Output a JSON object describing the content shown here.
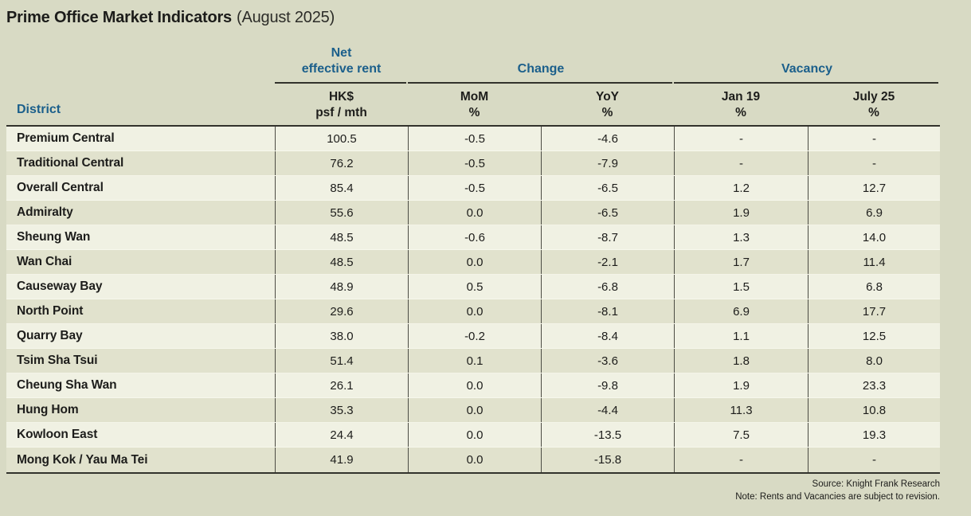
{
  "title": {
    "main": "Prime Office Market Indicators",
    "suffix": "(August 2025)"
  },
  "header": {
    "district_label": "District",
    "groups": [
      {
        "label": "Net\neffective rent"
      },
      {
        "label": "Change"
      },
      {
        "label": "Vacancy"
      }
    ],
    "columns": [
      {
        "label": "HK$\npsf / mth"
      },
      {
        "label": "MoM\n%"
      },
      {
        "label": "YoY\n%"
      },
      {
        "label": "Jan 19\n%"
      },
      {
        "label": "July 25\n%"
      }
    ]
  },
  "rows": [
    {
      "district": "Premium Central",
      "rent": "100.5",
      "mom": "-0.5",
      "yoy": "-4.6",
      "jan19": "-",
      "july25": "-"
    },
    {
      "district": "Traditional Central",
      "rent": "76.2",
      "mom": "-0.5",
      "yoy": "-7.9",
      "jan19": "-",
      "july25": "-"
    },
    {
      "district": "Overall Central",
      "rent": "85.4",
      "mom": "-0.5",
      "yoy": "-6.5",
      "jan19": "1.2",
      "july25": "12.7"
    },
    {
      "district": "Admiralty",
      "rent": "55.6",
      "mom": "0.0",
      "yoy": "-6.5",
      "jan19": "1.9",
      "july25": "6.9"
    },
    {
      "district": "Sheung Wan",
      "rent": "48.5",
      "mom": "-0.6",
      "yoy": "-8.7",
      "jan19": "1.3",
      "july25": "14.0"
    },
    {
      "district": "Wan Chai",
      "rent": "48.5",
      "mom": "0.0",
      "yoy": "-2.1",
      "jan19": "1.7",
      "july25": "11.4"
    },
    {
      "district": "Causeway Bay",
      "rent": "48.9",
      "mom": "0.5",
      "yoy": "-6.8",
      "jan19": "1.5",
      "july25": "6.8"
    },
    {
      "district": "North Point",
      "rent": "29.6",
      "mom": "0.0",
      "yoy": "-8.1",
      "jan19": "6.9",
      "july25": "17.7"
    },
    {
      "district": "Quarry Bay",
      "rent": "38.0",
      "mom": "-0.2",
      "yoy": "-8.4",
      "jan19": "1.1",
      "july25": "12.5"
    },
    {
      "district": "Tsim Sha Tsui",
      "rent": "51.4",
      "mom": "0.1",
      "yoy": "-3.6",
      "jan19": "1.8",
      "july25": "8.0"
    },
    {
      "district": "Cheung Sha Wan",
      "rent": "26.1",
      "mom": "0.0",
      "yoy": "-9.8",
      "jan19": "1.9",
      "july25": "23.3"
    },
    {
      "district": "Hung Hom",
      "rent": "35.3",
      "mom": "0.0",
      "yoy": "-4.4",
      "jan19": "11.3",
      "july25": "10.8"
    },
    {
      "district": "Kowloon East",
      "rent": "24.4",
      "mom": "0.0",
      "yoy": "-13.5",
      "jan19": "7.5",
      "july25": "19.3"
    },
    {
      "district": "Mong Kok / Yau Ma Tei",
      "rent": "41.9",
      "mom": "0.0",
      "yoy": "-15.8",
      "jan19": "-",
      "july25": "-"
    }
  ],
  "footer": {
    "source": "Source: Knight Frank Research",
    "note": "Note: Rents and Vacancies are subject to revision."
  },
  "colors": {
    "page_background": "#d8dac4",
    "row_light": "#f0f1e3",
    "row_dark": "#e1e2cd",
    "accent_blue": "#1b5f8b",
    "rule_dark": "#32322c"
  }
}
